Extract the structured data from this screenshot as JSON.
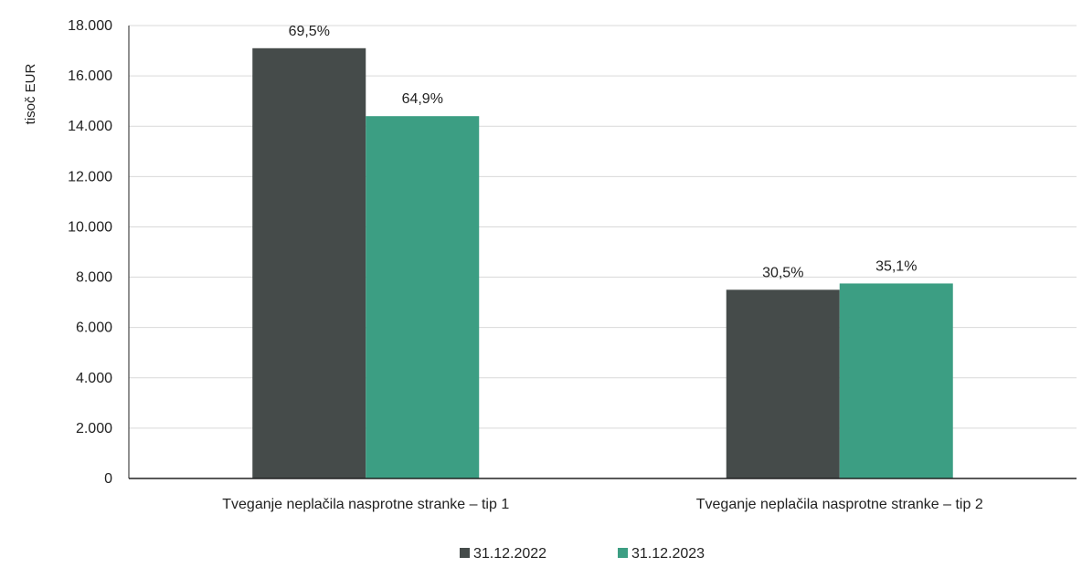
{
  "chart_data": {
    "type": "bar",
    "ylabel": "tisoč EUR",
    "ylim": [
      0,
      18000
    ],
    "yticks": [
      0,
      2000,
      4000,
      6000,
      8000,
      10000,
      12000,
      14000,
      16000,
      18000
    ],
    "ytick_labels": [
      "0",
      "2.000",
      "4.000",
      "6.000",
      "8.000",
      "10.000",
      "12.000",
      "14.000",
      "16.000",
      "18.000"
    ],
    "categories": [
      "Tveganje neplačila nasprotne stranke – tip 1",
      "Tveganje neplačila nasprotne stranke – tip 2"
    ],
    "series": [
      {
        "name": "31.12.2022",
        "color": "#454b4a",
        "values": [
          17100,
          7500
        ],
        "labels": [
          "69,5%",
          "30,5%"
        ]
      },
      {
        "name": "31.12.2023",
        "color": "#3c9e83",
        "values": [
          14400,
          7750
        ],
        "labels": [
          "64,9%",
          "35,1%"
        ]
      }
    ],
    "grid": true,
    "legend": "bottom-center"
  }
}
